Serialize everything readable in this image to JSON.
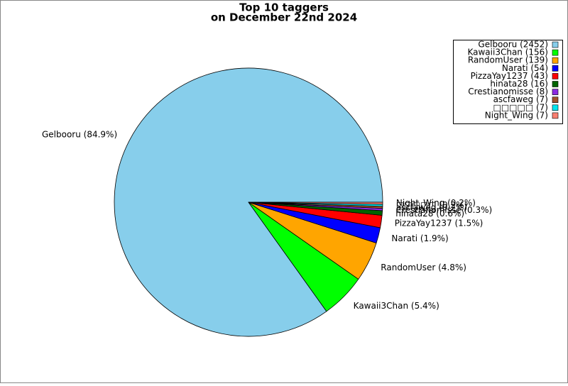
{
  "chart_data": {
    "type": "pie",
    "title_lines": [
      "Top 10 taggers",
      "on December 22nd 2024"
    ],
    "categories": [
      "Gelbooru",
      "Kawaii3Chan",
      "RandomUser",
      "Narati",
      "PizzaYay1237",
      "hinata28",
      "Crestianomisse",
      "ascfaweg",
      "□□□□□",
      "Night_Wing"
    ],
    "values": [
      2452,
      156,
      139,
      54,
      43,
      16,
      8,
      7,
      7,
      7
    ],
    "legend_labels": [
      "Gelbooru (2452)",
      "Kawaii3Chan (156)",
      "RandomUser (139)",
      "Narati (54)",
      "PizzaYay1237 (43)",
      "hinata28 (16)",
      "Crestianomisse (8)",
      "ascfaweg (7)",
      "□□□□□ (7)",
      "Night_Wing (7)"
    ],
    "value_labels": [
      "Gelbooru (84.9%)",
      "Kawaii3Chan (5.4%)",
      "RandomUser (4.8%)",
      "Narati (1.9%)",
      "PizzaYay1237 (1.5%)",
      "hinata28 (0.6%)",
      "Crestianomisse (0.3%)",
      "ascfaweg (0.2%)",
      "□□□□□ (0.2%)",
      "Night_Wing (0.2%)"
    ],
    "colors": [
      "#87ceeb",
      "#00ff00",
      "#ffa500",
      "#0000ff",
      "#ff0000",
      "#006400",
      "#8a2be2",
      "#a0522d",
      "#00e5ee",
      "#fa8072"
    ],
    "legend_position": "upper right"
  }
}
